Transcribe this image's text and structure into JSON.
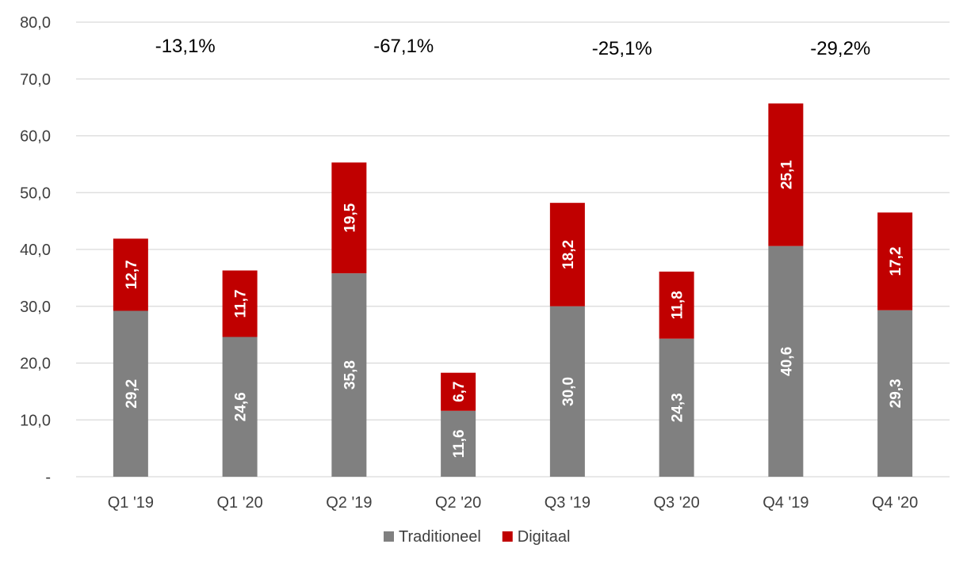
{
  "chart_data": {
    "type": "bar",
    "stacked": true,
    "categories": [
      "Q1 '19",
      "Q1 '20",
      "Q2 '19",
      "Q2 '20",
      "Q3 '19",
      "Q3 '20",
      "Q4 '19",
      "Q4 '20"
    ],
    "series": [
      {
        "name": "Traditioneel",
        "color": "#808080",
        "values": [
          29.2,
          24.6,
          35.8,
          11.6,
          30.0,
          24.3,
          40.6,
          29.3
        ],
        "labels": [
          "29,2",
          "24,6",
          "35,8",
          "11,6",
          "30,0",
          "24,3",
          "40,6",
          "29,3"
        ]
      },
      {
        "name": "Digitaal",
        "color": "#c00000",
        "values": [
          12.7,
          11.7,
          19.5,
          6.7,
          18.2,
          11.8,
          25.1,
          17.2
        ],
        "labels": [
          "12,7",
          "11,7",
          "19,5",
          "6,7",
          "18,2",
          "11,8",
          "25,1",
          "17,2"
        ]
      }
    ],
    "annotations": [
      "-13,1%",
      "-67,1%",
      "-25,1%",
      "-29,2%"
    ],
    "ylim": [
      0,
      80
    ],
    "yticks": [
      0,
      10,
      20,
      30,
      40,
      50,
      60,
      70,
      80
    ],
    "ytick_labels": [
      "-",
      "10,0",
      "20,0",
      "30,0",
      "40,0",
      "50,0",
      "60,0",
      "70,0",
      "80,0"
    ],
    "grid": true,
    "legend_position": "bottom",
    "title": "",
    "xlabel": "",
    "ylabel": ""
  }
}
